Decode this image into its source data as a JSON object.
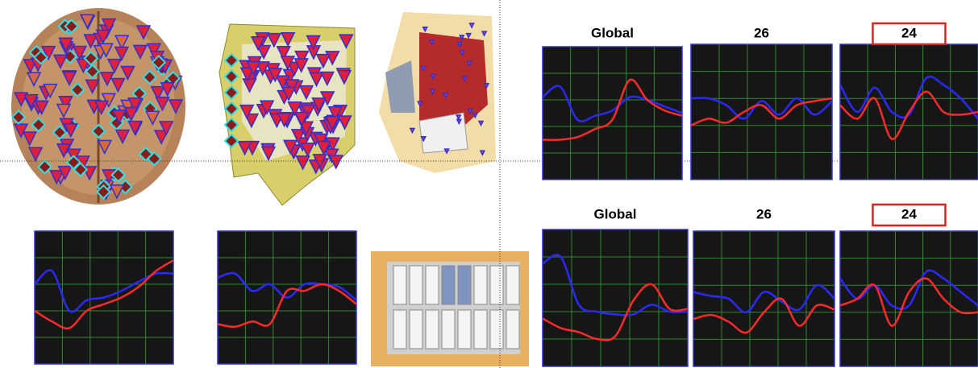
{
  "ylim": [
    0,
    100
  ],
  "panels": [
    {
      "series": [
        {
          "color": "#2a2aff",
          "values": [
            60,
            70,
            40,
            48,
            50,
            55,
            62,
            68,
            68
          ]
        },
        {
          "color": "#ff2a2a",
          "values": [
            40,
            32,
            27,
            40,
            45,
            50,
            58,
            70,
            78
          ]
        }
      ]
    },
    {
      "series": [
        {
          "color": "#2a2aff",
          "values": [
            65,
            68,
            55,
            60,
            50,
            60,
            60,
            58,
            48
          ]
        },
        {
          "color": "#ff2a2a",
          "values": [
            30,
            28,
            32,
            30,
            55,
            55,
            60,
            55,
            45
          ]
        }
      ]
    },
    {
      "title": "Global",
      "series": [
        {
          "color": "#2a2aff",
          "values": [
            62,
            70,
            45,
            48,
            52,
            62,
            60,
            55,
            50
          ]
        },
        {
          "color": "#ff2a2a",
          "values": [
            30,
            30,
            32,
            38,
            45,
            75,
            60,
            52,
            48
          ]
        }
      ]
    },
    {
      "title": "26",
      "series": [
        {
          "color": "#2a2aff",
          "values": [
            60,
            60,
            55,
            45,
            58,
            48,
            60,
            48,
            58
          ]
        },
        {
          "color": "#ff2a2a",
          "values": [
            40,
            45,
            42,
            50,
            55,
            45,
            55,
            58,
            60
          ]
        }
      ]
    },
    {
      "title": "24",
      "boxed": true,
      "series": [
        {
          "color": "#2a2aff",
          "values": [
            70,
            50,
            68,
            50,
            48,
            75,
            70,
            60,
            45
          ]
        },
        {
          "color": "#ff2a2a",
          "values": [
            55,
            45,
            60,
            30,
            50,
            65,
            50,
            48,
            50
          ]
        }
      ]
    },
    {
      "title": "Global",
      "series": [
        {
          "color": "#2a2aff",
          "values": [
            75,
            80,
            45,
            40,
            38,
            38,
            45,
            40,
            40
          ]
        },
        {
          "color": "#ff2a2a",
          "values": [
            35,
            28,
            25,
            20,
            22,
            48,
            60,
            42,
            42
          ]
        }
      ]
    },
    {
      "title": "26",
      "series": [
        {
          "color": "#2a2aff",
          "values": [
            55,
            52,
            50,
            40,
            55,
            48,
            42,
            60,
            50
          ]
        },
        {
          "color": "#ff2a2a",
          "values": [
            35,
            38,
            33,
            25,
            40,
            50,
            30,
            45,
            42
          ]
        }
      ]
    },
    {
      "title": "24",
      "boxed": true,
      "series": [
        {
          "color": "#2a2aff",
          "values": [
            65,
            50,
            60,
            45,
            45,
            70,
            65,
            55,
            45
          ]
        },
        {
          "color": "#ff2a2a",
          "values": [
            45,
            50,
            60,
            30,
            55,
            65,
            50,
            40,
            40
          ]
        }
      ]
    }
  ]
}
